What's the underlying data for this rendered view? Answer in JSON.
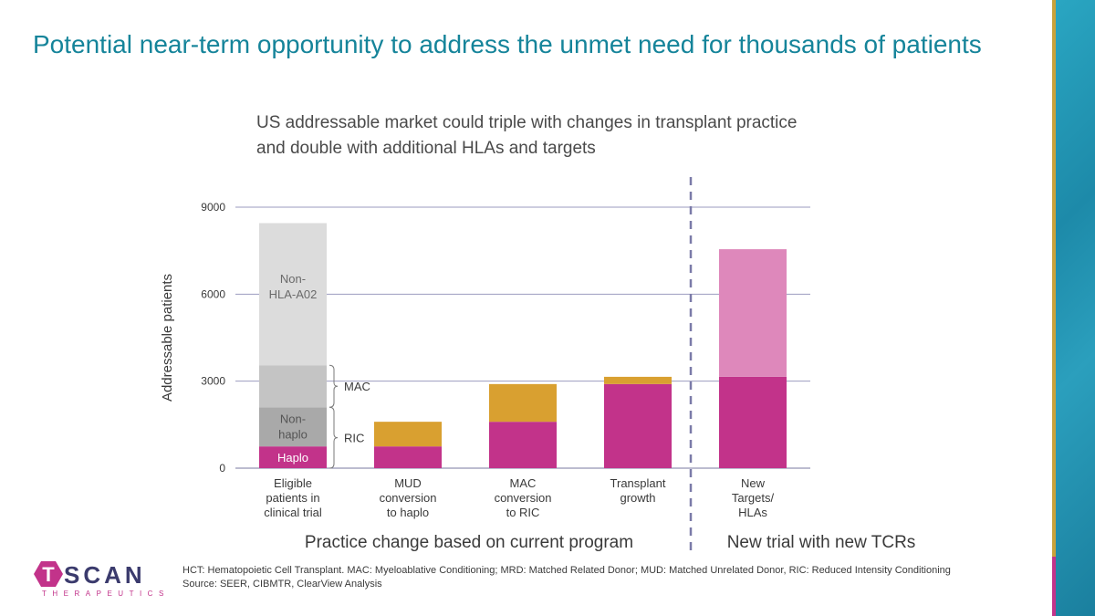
{
  "slide": {
    "title": "Potential near-term opportunity to address the unmet need for thousands of patients",
    "subtitle": "US addressable market could triple with changes in transplant practice and double with additional HLAs and targets"
  },
  "chart_data": {
    "type": "bar",
    "stacked": true,
    "ylabel": "Addressable patients",
    "ylim": [
      0,
      9000
    ],
    "yticks": [
      0,
      3000,
      6000,
      9000
    ],
    "grid": true,
    "categories": [
      [
        "Eligible",
        "patients in",
        "clinical trial"
      ],
      [
        "MUD",
        "conversion",
        "to haplo"
      ],
      [
        "MAC",
        "conversion",
        "to RIC"
      ],
      [
        "Transplant",
        "growth"
      ],
      [
        "New",
        "Targets/",
        "HLAs"
      ]
    ],
    "bars": [
      {
        "segments": [
          {
            "label": "Haplo",
            "base": 0,
            "top": 750,
            "color": "#c2338a"
          },
          {
            "label": "Non-haplo",
            "base": 750,
            "top": 2100,
            "color": "#a9a9a9"
          },
          {
            "label": "",
            "base": 2100,
            "top": 3550,
            "color": "#c4c4c4"
          },
          {
            "label": "Non-HLA-A02",
            "base": 3550,
            "top": 8450,
            "color": "#dcdcdc"
          }
        ]
      },
      {
        "segments": [
          {
            "label": "",
            "base": 0,
            "top": 750,
            "color": "#c2338a"
          },
          {
            "label": "",
            "base": 750,
            "top": 1600,
            "color": "#d9a030"
          }
        ]
      },
      {
        "segments": [
          {
            "label": "",
            "base": 0,
            "top": 1600,
            "color": "#c2338a"
          },
          {
            "label": "",
            "base": 1600,
            "top": 2900,
            "color": "#d9a030"
          }
        ]
      },
      {
        "segments": [
          {
            "label": "",
            "base": 0,
            "top": 2900,
            "color": "#c2338a"
          },
          {
            "label": "",
            "base": 2900,
            "top": 3150,
            "color": "#d9a030"
          }
        ]
      },
      {
        "segments": [
          {
            "label": "",
            "base": 0,
            "top": 3150,
            "color": "#c2338a"
          },
          {
            "label": "",
            "base": 3150,
            "top": 7550,
            "color": "#de88bb"
          }
        ]
      }
    ],
    "braces": [
      {
        "label": "MAC",
        "base": 2100,
        "top": 3550
      },
      {
        "label": "RIC",
        "base": 0,
        "top": 2100
      }
    ],
    "segment_labels": {
      "haplo": "Haplo",
      "non_haplo": [
        "Non-",
        "haplo"
      ],
      "non_hla": [
        "Non-",
        "HLA-A02"
      ]
    },
    "group_labels": {
      "left": "Practice change based on current program",
      "right": "New trial with new TCRs"
    }
  },
  "footer": {
    "line1": "HCT: Hematopoietic Cell Transplant. MAC: Myeloablative Conditioning; MRD: Matched Related Donor; MUD: Matched Unrelated Donor, RIC: Reduced Intensity Conditioning",
    "line2": "Source: SEER, CIBMTR, ClearView Analysis"
  },
  "logo": {
    "word": "SCAN",
    "sub": "THERAPEUTICS",
    "letter": "T",
    "colors": {
      "hex": "#c2338a",
      "text": "#3b3b6d"
    }
  }
}
